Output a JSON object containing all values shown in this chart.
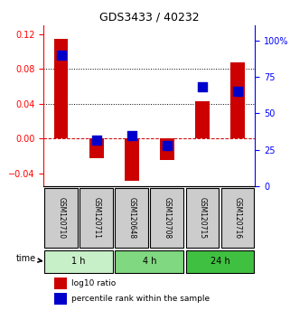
{
  "title": "GDS3433 / 40232",
  "samples": [
    "GSM120710",
    "GSM120711",
    "GSM120648",
    "GSM120708",
    "GSM120715",
    "GSM120716"
  ],
  "log10_ratio": [
    0.115,
    -0.022,
    -0.048,
    -0.025,
    0.043,
    0.088
  ],
  "percentile_rank": [
    90,
    32,
    35,
    28,
    68,
    65
  ],
  "groups": [
    {
      "label": "1 h",
      "indices": [
        0,
        1
      ],
      "color": "#c8f0c8"
    },
    {
      "label": "4 h",
      "indices": [
        2,
        3
      ],
      "color": "#80d880"
    },
    {
      "label": "24 h",
      "indices": [
        4,
        5
      ],
      "color": "#40c040"
    }
  ],
  "ylim_left": [
    -0.055,
    0.13
  ],
  "ylim_right": [
    0,
    110
  ],
  "yticks_left": [
    -0.04,
    0,
    0.04,
    0.08,
    0.12
  ],
  "yticks_right": [
    0,
    25,
    50,
    75,
    100
  ],
  "ytick_labels_right": [
    "0",
    "25",
    "50",
    "75",
    "100%"
  ],
  "hlines": [
    0.04,
    0.08
  ],
  "bar_color": "#cc0000",
  "dot_color": "#0000cc",
  "bar_width": 0.4,
  "dot_size": 60,
  "background_color": "#ffffff",
  "plot_bg": "#ffffff",
  "label_box_color": "#cccccc",
  "xlabel_rotation": -90,
  "time_label": "time"
}
